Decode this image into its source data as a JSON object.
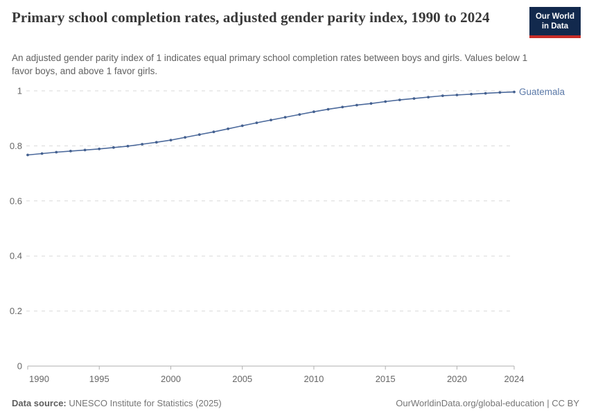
{
  "header": {
    "title": "Primary school completion rates, adjusted gender parity index, 1990 to 2024",
    "subtitle": "An adjusted gender parity index of 1 indicates equal primary school completion rates between boys and girls. Values below 1 favor boys, and above 1 favor girls.",
    "logo_line1": "Our World",
    "logo_line2": "in Data"
  },
  "footer": {
    "source_label": "Data source:",
    "source_text": "UNESCO Institute for Statistics (2025)",
    "credit": "OurWorldinData.org/global-education | CC BY"
  },
  "colors": {
    "line": "#4C6A9C",
    "dot": "#44608F",
    "end_label": "#5B79A8",
    "grid": "#D9D9D9",
    "axis": "#AFAFAF",
    "tick_label": "#666666",
    "logo_navy": "#12294D",
    "logo_red": "#C82D28"
  },
  "chart_data": {
    "type": "line",
    "title": "Primary school completion rates, adjusted gender parity index, 1990 to 2024",
    "xlabel": "",
    "ylabel": "",
    "xlim": [
      1990,
      2024
    ],
    "ylim": [
      0,
      1
    ],
    "grid": "horizontal-dashed",
    "legend_position": "end-of-line",
    "x_ticks": [
      1990,
      1995,
      2000,
      2005,
      2010,
      2015,
      2020,
      2024
    ],
    "y_ticks": [
      0,
      0.2,
      0.4,
      0.6,
      0.8,
      1
    ],
    "x": [
      1990,
      1991,
      1992,
      1993,
      1994,
      1995,
      1996,
      1997,
      1998,
      1999,
      2000,
      2001,
      2002,
      2003,
      2004,
      2005,
      2006,
      2007,
      2008,
      2009,
      2010,
      2011,
      2012,
      2013,
      2014,
      2015,
      2016,
      2017,
      2018,
      2019,
      2020,
      2021,
      2022,
      2023,
      2024
    ],
    "series": [
      {
        "name": "Guatemala",
        "end_label": "Guatemala",
        "color": "#4C6A9C",
        "values": [
          0.767,
          0.772,
          0.777,
          0.781,
          0.785,
          0.789,
          0.794,
          0.799,
          0.806,
          0.813,
          0.821,
          0.831,
          0.841,
          0.851,
          0.862,
          0.873,
          0.884,
          0.894,
          0.904,
          0.914,
          0.924,
          0.933,
          0.941,
          0.948,
          0.954,
          0.961,
          0.967,
          0.972,
          0.977,
          0.982,
          0.985,
          0.988,
          0.991,
          0.994,
          0.996
        ]
      }
    ]
  }
}
